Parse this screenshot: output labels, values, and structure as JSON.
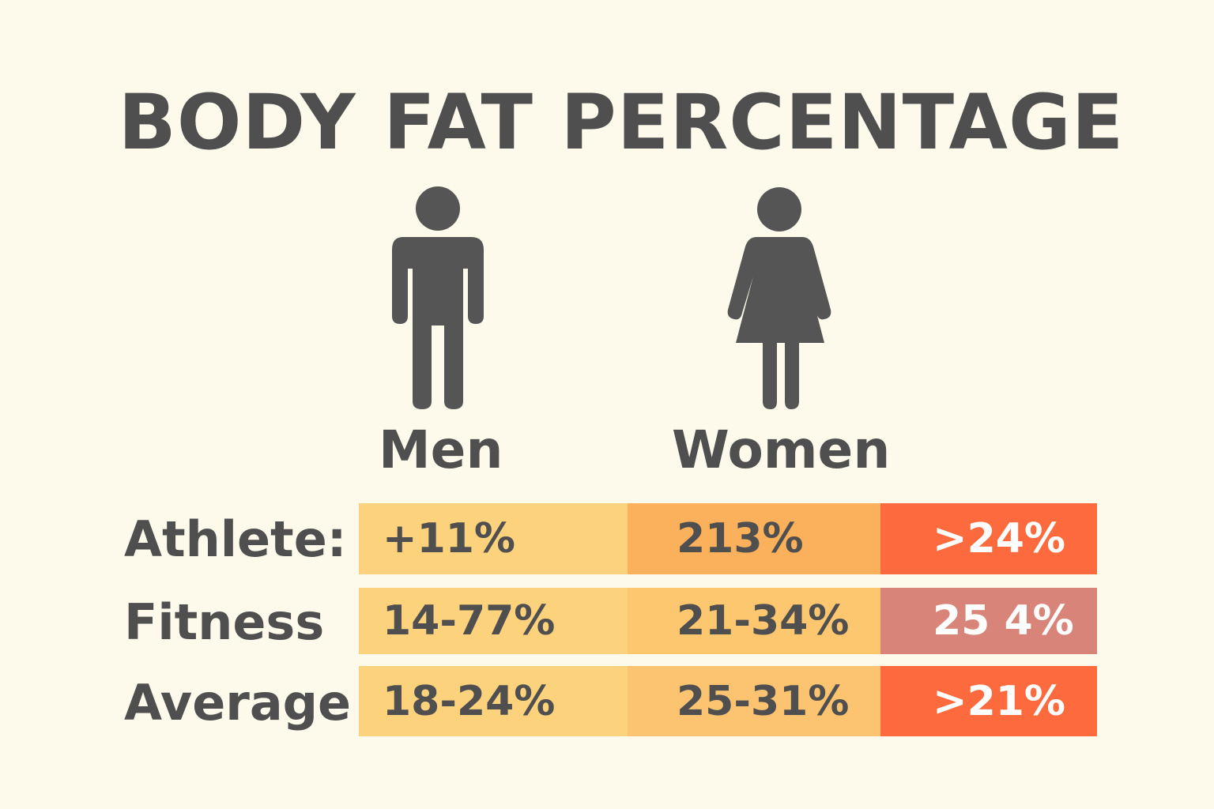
{
  "title": "BODY FAT PERCENTAGE",
  "figures": {
    "men": {
      "label": "Men",
      "icon": "man-icon"
    },
    "women": {
      "label": "Women",
      "icon": "woman-icon"
    }
  },
  "rows": [
    {
      "label": "Athlete:",
      "values": [
        "+11%",
        "213%",
        ">24%"
      ],
      "status_color": "#fc6a3e"
    },
    {
      "label": "Fitness",
      "values": [
        "14-77%",
        "21-34%",
        "25 4%"
      ],
      "status_color": "#d98479"
    },
    {
      "label": "Average",
      "values": [
        "18-24%",
        "25-31%",
        ">21%"
      ],
      "status_color": "#fc6a3e"
    }
  ],
  "colors": {
    "background": "#fdfaec",
    "text": "#4f4f4f",
    "men_cell": "#fcd27d",
    "women_cell": "#fcbe6b"
  }
}
